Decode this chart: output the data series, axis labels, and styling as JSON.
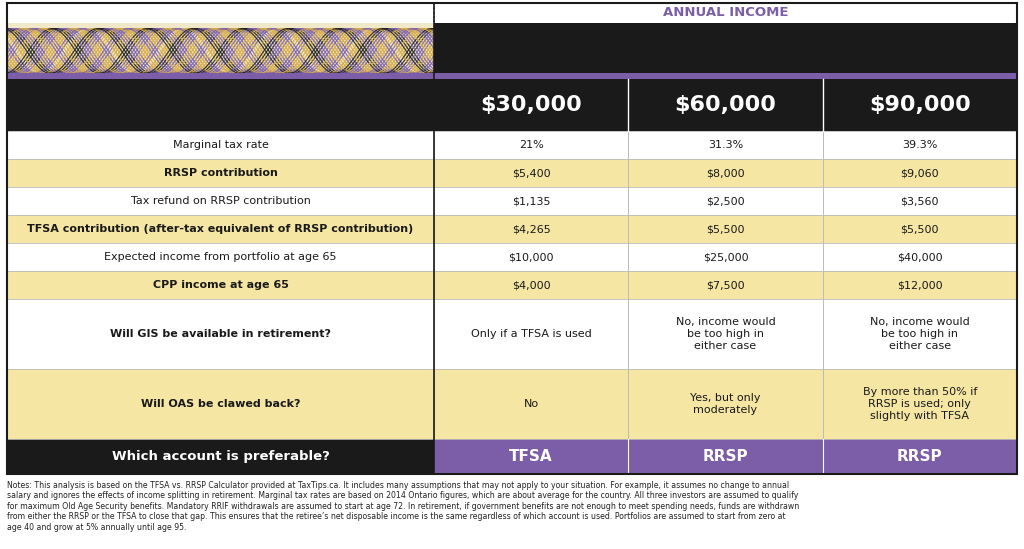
{
  "title": "ANNUAL INCOME",
  "col_headers": [
    "$30,000",
    "$60,000",
    "$90,000"
  ],
  "rows": [
    {
      "label": "Marginal tax rate",
      "values": [
        "21%",
        "31.3%",
        "39.3%"
      ],
      "bg": "#ffffff",
      "label_bold": false
    },
    {
      "label": "RRSP contribution",
      "values": [
        "$5,400",
        "$8,000",
        "$9,060"
      ],
      "bg": "#f5e6a3",
      "label_bold": true
    },
    {
      "label": "Tax refund on RRSP contribution",
      "values": [
        "$1,135",
        "$2,500",
        "$3,560"
      ],
      "bg": "#ffffff",
      "label_bold": false
    },
    {
      "label": "TFSA contribution (after-tax equivalent of RRSP contribution)",
      "values": [
        "$4,265",
        "$5,500",
        "$5,500"
      ],
      "bg": "#f5e6a3",
      "label_bold": true
    },
    {
      "label": "Expected income from portfolio at age 65",
      "values": [
        "$10,000",
        "$25,000",
        "$40,000"
      ],
      "bg": "#ffffff",
      "label_bold": false
    },
    {
      "label": "CPP income at age 65",
      "values": [
        "$4,000",
        "$7,500",
        "$12,000"
      ],
      "bg": "#f5e6a3",
      "label_bold": true
    },
    {
      "label": "Will GIS be available in retirement?",
      "values": [
        "Only if a TFSA is used",
        "No, income would\nbe too high in\neither case",
        "No, income would\nbe too high in\neither case"
      ],
      "bg": "#ffffff",
      "label_bold": true
    },
    {
      "label": "Will OAS be clawed back?",
      "values": [
        "No",
        "Yes, but only\nmoderately",
        "By more than 50% if\nRRSP is used; only\nslightly with TFSA"
      ],
      "bg": "#f5e6a3",
      "label_bold": true
    }
  ],
  "footer_row": {
    "label": "Which account is preferable?",
    "values": [
      "TFSA",
      "RRSP",
      "RRSP"
    ],
    "label_bg": "#1a1a1a",
    "label_text": "#ffffff",
    "value_bg": "#7b5ea7",
    "value_text": "#ffffff"
  },
  "notes": "Notes: This analysis is based on the TFSA vs. RRSP Calculator provided at TaxTips.ca. It includes many assumptions that may not apply to your situation. For example, it assumes no change to annual\nsalary and ignores the effects of income splitting in retirement. Marginal tax rates are based on 2014 Ontario figures, which are about average for the country. All three investors are assumed to qualify\nfor maximum Old Age Security benefits. Mandatory RRIF withdrawals are assumed to start at age 72. In retirement, if government benefits are not enough to meet spending needs, funds are withdrawn\nfrom either the RRSP or the TFSA to close that gap. This ensures that the retiree’s net disposable income is the same regardless of which account is used. Portfolios are assumed to start from zero at\nage 40 and grow at 5% annually until age 95.",
  "bg_color": "#ffffff",
  "yellow_bg": "#f5e6a3",
  "purple_color": "#7b5ea7",
  "black_color": "#1a1a1a",
  "wave_bg": "#f0e8c8",
  "wave_colors": [
    "#d4a843",
    "#7b5ea7",
    "#1a1a1a"
  ]
}
